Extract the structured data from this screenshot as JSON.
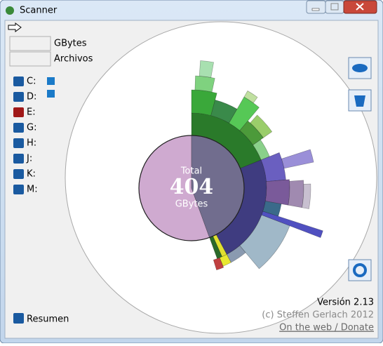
{
  "window": {
    "title": "Scanner"
  },
  "fields": [
    "GBytes",
    "Archivos"
  ],
  "drives": [
    "C:",
    "D:",
    "E:",
    "G:",
    "H:",
    "J:",
    "K:",
    "M:"
  ],
  "center": {
    "label": "Total",
    "value": 404,
    "unit": "GBytes"
  },
  "footer": {
    "version": "Versión 2.13",
    "copyright": "(c) Steffen Gerlach 2012",
    "link": "On the web / Donate"
  },
  "summary": "Resumen"
}
